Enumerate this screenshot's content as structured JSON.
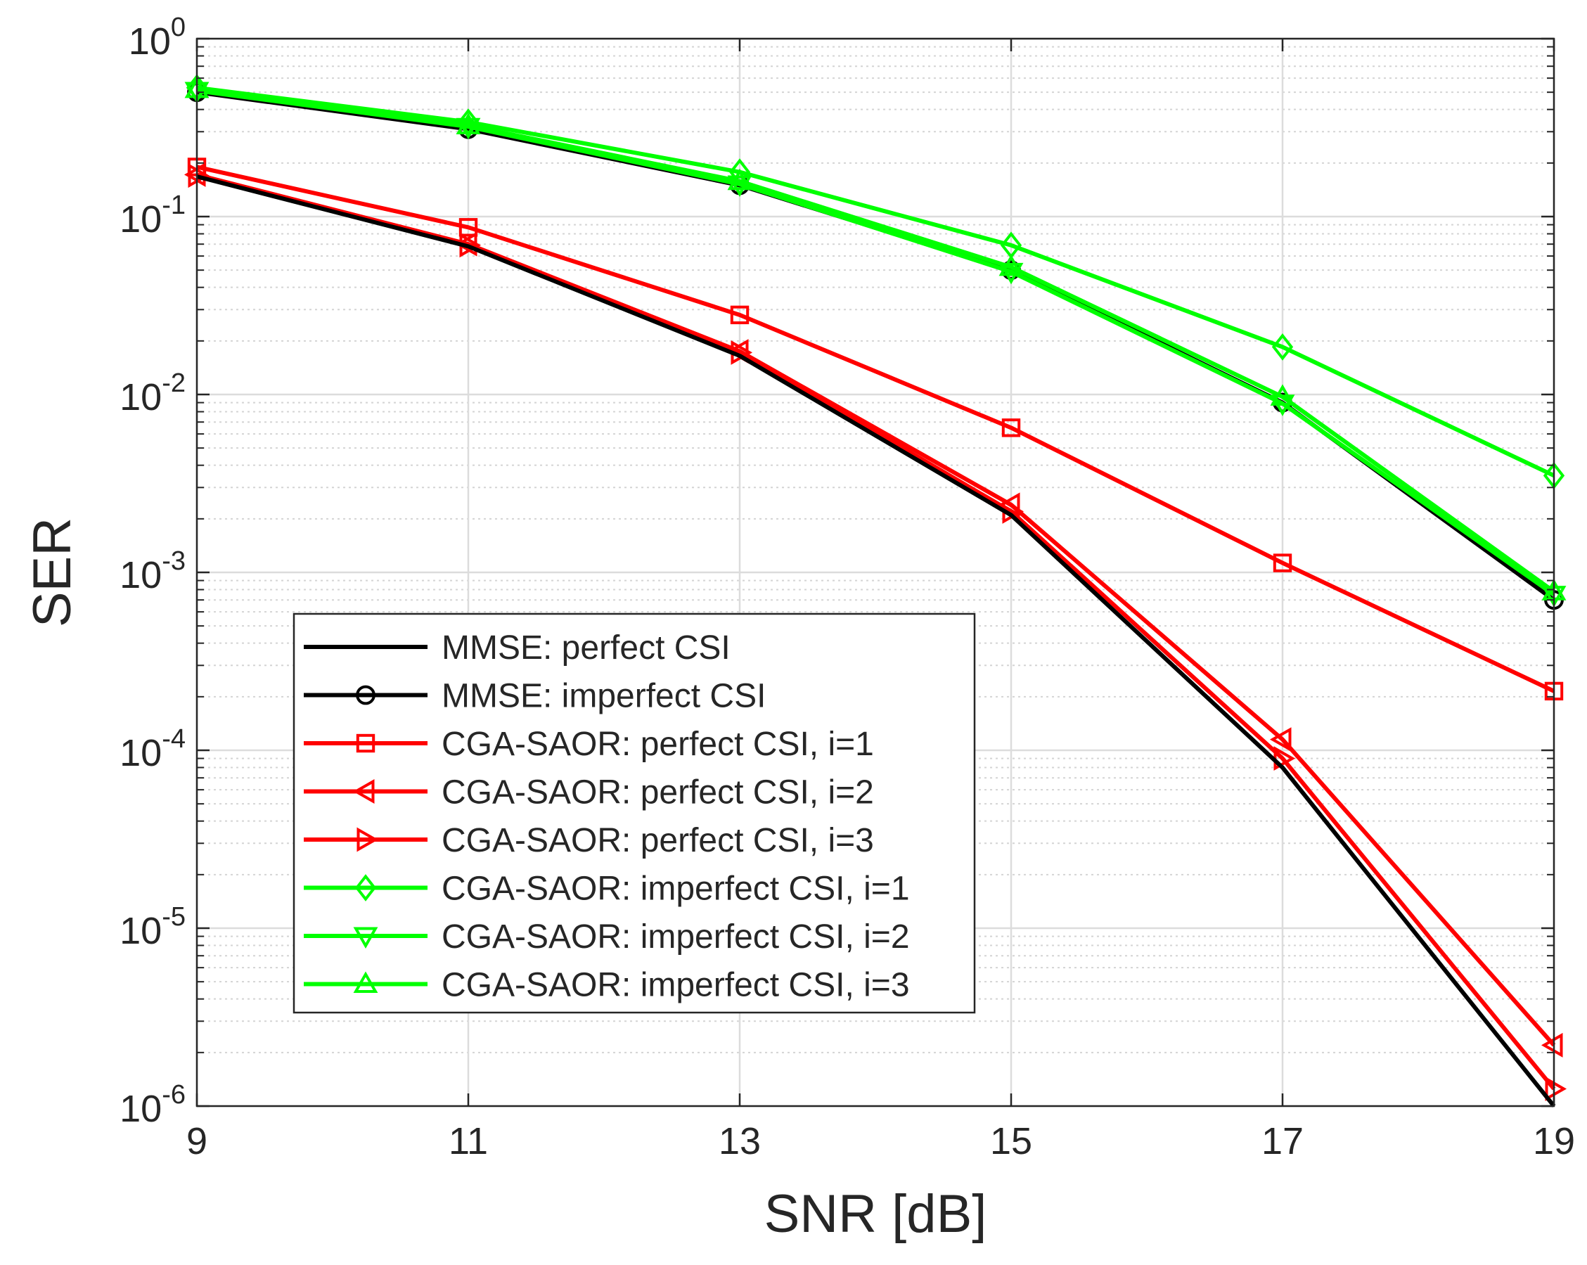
{
  "chart_data": {
    "type": "line",
    "title": "",
    "xlabel": "SNR [dB]",
    "ylabel": "SER",
    "xscale": "linear",
    "yscale": "log",
    "xlim": [
      9,
      19
    ],
    "ylim": [
      1e-06,
      1
    ],
    "x": [
      9,
      11,
      13,
      15,
      17,
      19
    ],
    "x_ticks": [
      "9",
      "11",
      "13",
      "15",
      "17",
      "19"
    ],
    "y_ticks": [
      {
        "value": 1e-06,
        "base": "10",
        "exp": "-6"
      },
      {
        "value": 1e-05,
        "base": "10",
        "exp": "-5"
      },
      {
        "value": 0.0001,
        "base": "10",
        "exp": "-4"
      },
      {
        "value": 0.001,
        "base": "10",
        "exp": "-3"
      },
      {
        "value": 0.01,
        "base": "10",
        "exp": "-2"
      },
      {
        "value": 0.1,
        "base": "10",
        "exp": "-1"
      },
      {
        "value": 1,
        "base": "10",
        "exp": "0"
      }
    ],
    "grid": true,
    "minor_grid": true,
    "legend_position": "lower-left",
    "series": [
      {
        "name": "MMSE: perfect CSI",
        "color": "#000000",
        "marker": "none",
        "values": [
          0.168,
          0.068,
          0.0165,
          0.0021,
          8e-05,
          1e-06
        ]
      },
      {
        "name": "MMSE: imperfect CSI",
        "color": "#000000",
        "marker": "circle",
        "values": [
          0.5,
          0.31,
          0.15,
          0.05,
          0.009,
          0.0007
        ]
      },
      {
        "name": "CGA-SAOR: perfect CSI, i=1",
        "color": "#ff0000",
        "marker": "square",
        "values": [
          0.19,
          0.087,
          0.028,
          0.0065,
          0.00113,
          0.000215
        ]
      },
      {
        "name": "CGA-SAOR: perfect CSI, i=2",
        "color": "#ff0000",
        "marker": "triangle-left",
        "values": [
          0.172,
          0.07,
          0.0175,
          0.0024,
          0.000115,
          2.2e-06
        ]
      },
      {
        "name": "CGA-SAOR: perfect CSI, i=3",
        "color": "#ff0000",
        "marker": "triangle-right",
        "values": [
          0.17,
          0.069,
          0.0172,
          0.0022,
          9e-05,
          1.25e-06
        ]
      },
      {
        "name": "CGA-SAOR: imperfect CSI, i=1",
        "color": "#00ff00",
        "marker": "diamond",
        "values": [
          0.53,
          0.34,
          0.178,
          0.069,
          0.0185,
          0.0035
        ]
      },
      {
        "name": "CGA-SAOR: imperfect CSI, i=2",
        "color": "#00ff00",
        "marker": "triangle-down",
        "values": [
          0.51,
          0.32,
          0.152,
          0.049,
          0.0089,
          0.00075
        ]
      },
      {
        "name": "CGA-SAOR: imperfect CSI, i=3",
        "color": "#00ff00",
        "marker": "triangle-up",
        "values": [
          0.52,
          0.325,
          0.158,
          0.052,
          0.0097,
          0.00078
        ]
      }
    ]
  }
}
